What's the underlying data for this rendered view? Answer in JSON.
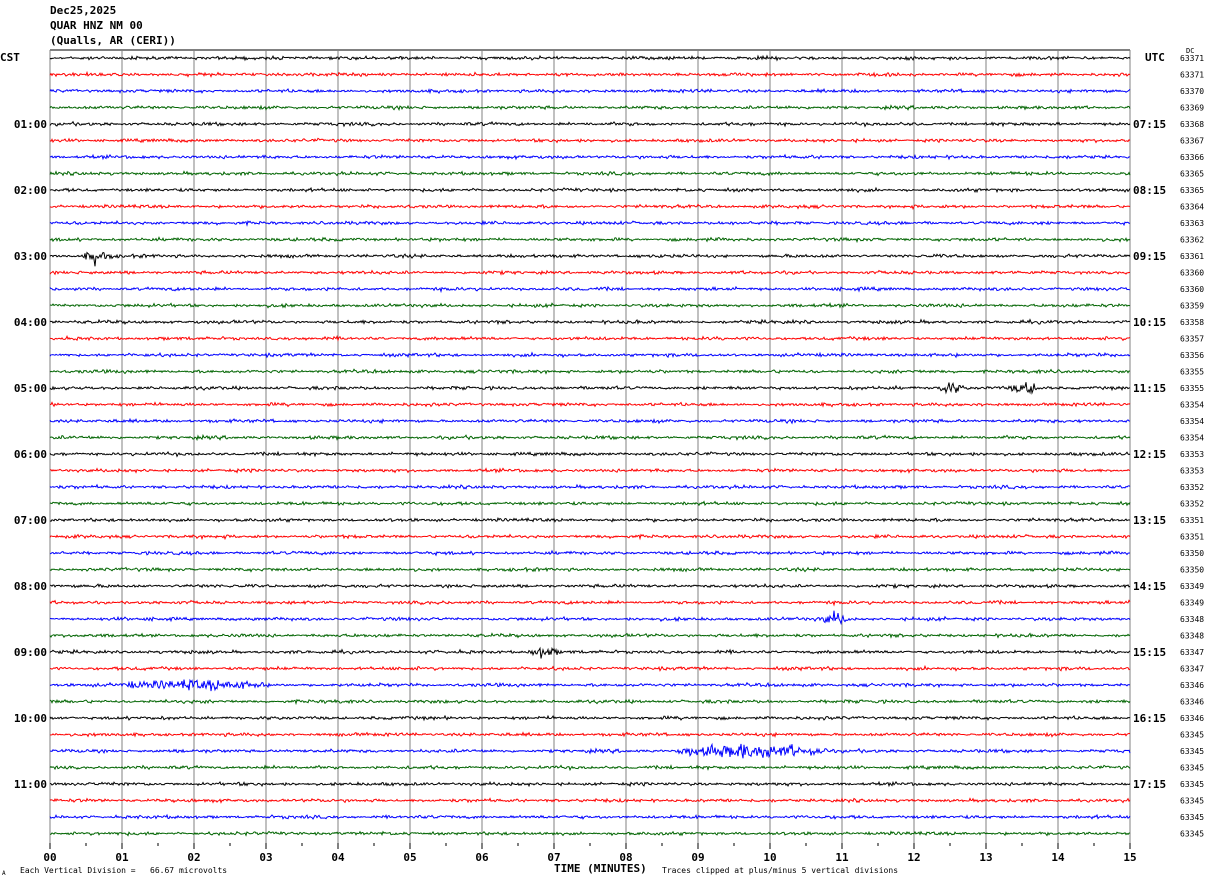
{
  "header": {
    "date": "Dec25,2025",
    "station": "QUAR HNZ NM 00",
    "location": "(Qualls, AR (CERI))"
  },
  "left_zone_label": "CST",
  "right_zone_label": "UTC",
  "right_column_header": "DC",
  "footer": {
    "scale_note": "Each Vertical Division =   66.67 microvolts",
    "clip_note": "Traces clipped at plus/minus 5 vertical divisions",
    "corner_mark": "A"
  },
  "colors": {
    "trace_cycle": [
      "#000000",
      "#ff0000",
      "#0000ff",
      "#006400"
    ],
    "grid": "#808080",
    "background": "#ffffff"
  },
  "chart_data": {
    "type": "line",
    "title": "QUAR HNZ NM 00",
    "xlabel": "TIME (MINUTES)",
    "xlim": [
      0,
      15
    ],
    "x_ticks": [
      "00",
      "01",
      "02",
      "03",
      "04",
      "05",
      "06",
      "07",
      "08",
      "09",
      "10",
      "11",
      "12",
      "13",
      "14",
      "15"
    ],
    "row_count": 48,
    "minutes_per_row": 15,
    "left_time_labels": [
      "01:00",
      "02:00",
      "03:00",
      "04:00",
      "05:00",
      "06:00",
      "07:00",
      "08:00",
      "09:00",
      "10:00",
      "11:00"
    ],
    "right_time_labels": [
      "07:15",
      "08:15",
      "09:15",
      "10:15",
      "11:15",
      "12:15",
      "13:15",
      "14:15",
      "15:15",
      "16:15",
      "17:15"
    ],
    "dc_offsets": [
      "63371",
      "63371",
      "63370",
      "63369",
      "63368",
      "63367",
      "63366",
      "63365",
      "63365",
      "63364",
      "63363",
      "63362",
      "63361",
      "63360",
      "63360",
      "63359",
      "63358",
      "63357",
      "63356",
      "63355",
      "63355",
      "63354",
      "63354",
      "63354",
      "63353",
      "63353",
      "63352",
      "63352",
      "63351",
      "63351",
      "63350",
      "63350",
      "63349",
      "63349",
      "63348",
      "63348",
      "63347",
      "63347",
      "63346",
      "63346",
      "63346",
      "63345",
      "63345",
      "63345",
      "63345",
      "63345",
      "63345",
      "63345"
    ],
    "events": [
      {
        "row": 12,
        "minute": 0.65,
        "amplitude": "spike"
      },
      {
        "row": 20,
        "minute": 12.5,
        "amplitude": "small burst"
      },
      {
        "row": 20,
        "minute": 13.55,
        "amplitude": "small burst"
      },
      {
        "row": 34,
        "minute": 10.9,
        "amplitude": "small burst"
      },
      {
        "row": 36,
        "minute": 6.85,
        "amplitude": "spike"
      },
      {
        "row": 38,
        "minute_range": [
          1.0,
          3.0
        ],
        "amplitude": "bursts"
      },
      {
        "row": 42,
        "minute_range": [
          8.7,
          10.8
        ],
        "amplitude": "large burst"
      }
    ]
  }
}
